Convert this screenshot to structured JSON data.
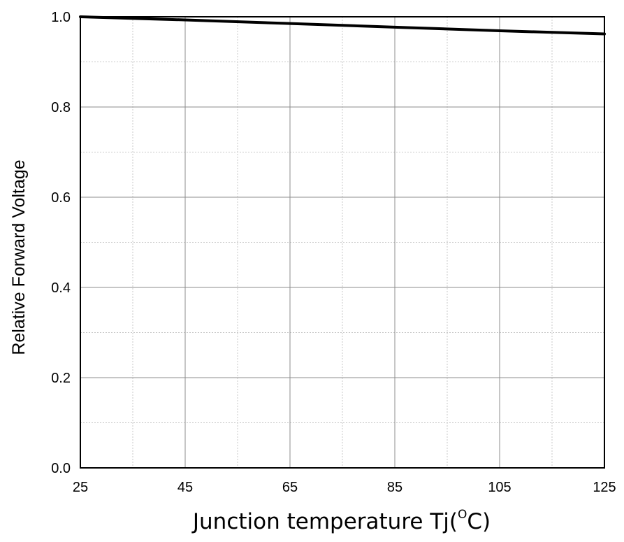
{
  "chart_data": {
    "type": "line",
    "xlabel": "Junction temperature Tj(°C)",
    "xlabel_main": "Junction temperature Tj(",
    "xlabel_sup": "O",
    "xlabel_end": "C)",
    "ylabel": "Relative Forward Voltage",
    "xlim": [
      25,
      125
    ],
    "ylim": [
      0.0,
      1.0
    ],
    "x_ticks": [
      25,
      45,
      65,
      85,
      105,
      125
    ],
    "x_tick_labels": [
      "25",
      "45",
      "65",
      "85",
      "105",
      "125"
    ],
    "y_ticks": [
      0.0,
      0.2,
      0.4,
      0.6,
      0.8,
      1.0
    ],
    "y_tick_labels": [
      "0.0",
      "0.2",
      "0.4",
      "0.6",
      "0.8",
      "1.0"
    ],
    "x_minor_step": 10,
    "y_minor_step": 0.1,
    "grid": true,
    "line_color": "#000000",
    "series": [
      {
        "x": [
          25,
          45,
          65,
          85,
          105,
          125
        ],
        "y": [
          1.0,
          0.993,
          0.985,
          0.977,
          0.969,
          0.962
        ]
      }
    ]
  }
}
